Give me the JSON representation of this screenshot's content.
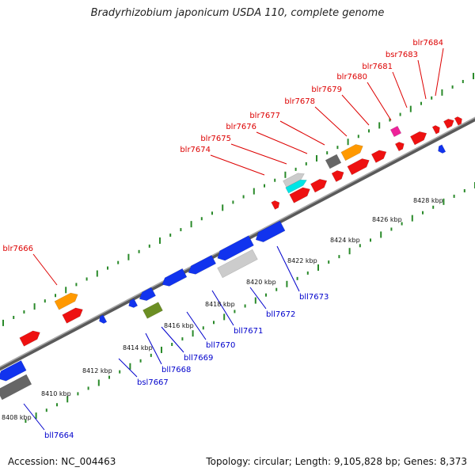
{
  "title": "Bradyrhizobium japonicum USDA 110, complete genome",
  "footer": {
    "accession": "Accession: NC_004463",
    "summary": "Topology: circular; Length: 9,105,828 bp; Genes: 8,373"
  },
  "colors": {
    "forward_label": "#dd0000",
    "reverse_label": "#0000cc",
    "ruler_tick": "#2a8a2a",
    "backbone": "#8a8a8a",
    "red": "#ee1111",
    "blue": "#1133ee",
    "orange": "#ff9900",
    "gray": "#666666",
    "lightgray": "#cccccc",
    "cyan": "#00e5e5",
    "magenta": "#ee2299",
    "olive": "#6b8e23"
  },
  "scale_labels": [
    {
      "text": "8408 kbp"
    },
    {
      "text": "8410 kbp"
    },
    {
      "text": "8412 kbp"
    },
    {
      "text": "8414 kbp"
    },
    {
      "text": "8416 kbp"
    },
    {
      "text": "8418 kbp"
    },
    {
      "text": "8420 kbp"
    },
    {
      "text": "8422 kbp"
    },
    {
      "text": "8424 kbp"
    },
    {
      "text": "8426 kbp"
    },
    {
      "text": "8428 kbp"
    }
  ],
  "forward_labels": [
    {
      "text": "blr7666"
    },
    {
      "text": "blr7674"
    },
    {
      "text": "blr7675"
    },
    {
      "text": "blr7676"
    },
    {
      "text": "blr7677"
    },
    {
      "text": "blr7678"
    },
    {
      "text": "blr7679"
    },
    {
      "text": "blr7680"
    },
    {
      "text": "blr7681"
    },
    {
      "text": "bsr7683"
    },
    {
      "text": "blr7684"
    }
  ],
  "reverse_labels": [
    {
      "text": "bll7664"
    },
    {
      "text": "bsl7667"
    },
    {
      "text": "bll7668"
    },
    {
      "text": "bll7669"
    },
    {
      "text": "bll7670"
    },
    {
      "text": "bll7671"
    },
    {
      "text": "bll7672"
    },
    {
      "text": "bll7673"
    }
  ],
  "features": [
    {
      "id": "f1",
      "color": "red"
    },
    {
      "id": "f2",
      "color": "orange"
    },
    {
      "id": "f3",
      "color": "red"
    },
    {
      "id": "f4",
      "color": "red"
    },
    {
      "id": "f5",
      "color": "lightgray"
    },
    {
      "id": "f6",
      "color": "cyan"
    },
    {
      "id": "f7",
      "color": "red"
    },
    {
      "id": "f8",
      "color": "red"
    },
    {
      "id": "f9",
      "color": "gray"
    },
    {
      "id": "f10",
      "color": "red"
    },
    {
      "id": "f11",
      "color": "red"
    },
    {
      "id": "f12",
      "color": "orange"
    },
    {
      "id": "f13",
      "color": "red"
    },
    {
      "id": "f14",
      "color": "red"
    },
    {
      "id": "f15",
      "color": "magenta"
    },
    {
      "id": "f16",
      "color": "red"
    },
    {
      "id": "f17",
      "color": "red"
    },
    {
      "id": "f18",
      "color": "red"
    },
    {
      "id": "f19",
      "color": "red"
    },
    {
      "id": "r1",
      "color": "blue"
    },
    {
      "id": "r2",
      "color": "gray"
    },
    {
      "id": "r3",
      "color": "blue"
    },
    {
      "id": "r4",
      "color": "blue"
    },
    {
      "id": "r5",
      "color": "olive"
    },
    {
      "id": "r6",
      "color": "blue"
    },
    {
      "id": "r7",
      "color": "blue"
    },
    {
      "id": "r8",
      "color": "blue"
    },
    {
      "id": "r9",
      "color": "lightgray"
    },
    {
      "id": "r10",
      "color": "blue"
    },
    {
      "id": "r11",
      "color": "blue"
    },
    {
      "id": "r12",
      "color": "blue"
    }
  ]
}
